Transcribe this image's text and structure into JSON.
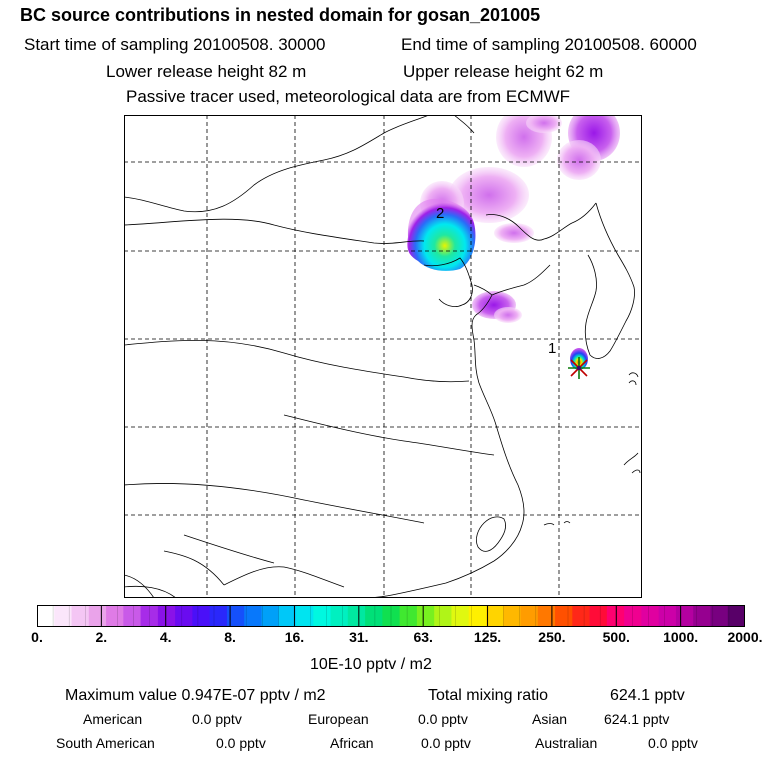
{
  "header": {
    "title": "BC  source contributions in nested domain for gosan_201005",
    "start_label": "Start time of sampling 20100508. 30000",
    "end_label": "End time of sampling 20100508. 60000",
    "lower_label": "Lower release height   82 m",
    "upper_label": "Upper release height   62 m",
    "note": "Passive tracer used, meteorological data are from ECMWF"
  },
  "map": {
    "markers": [
      {
        "label": "1",
        "name": "marker-1"
      },
      {
        "label": "2",
        "name": "marker-2"
      }
    ],
    "receptor_symbol": "star"
  },
  "colorbar": {
    "tick_labels": [
      "0.",
      "2.",
      "4.",
      "8.",
      "16.",
      "31.",
      "63.",
      "125.",
      "250.",
      "500.",
      "1000.",
      "2000."
    ],
    "units": "10E-10 pptv / m2",
    "colors": [
      "#ffffff",
      "#fbe6fb",
      "#f4c6f4",
      "#eaa3ea",
      "#df7be6",
      "#c95ae8",
      "#a72ce8",
      "#8a12e8",
      "#6a0cf0",
      "#4a10f8",
      "#2a28fb",
      "#1550fb",
      "#0878fb",
      "#00a0f8",
      "#00c8f8",
      "#00e4f0",
      "#00f8e0",
      "#00f0c0",
      "#00e8a0",
      "#00e078",
      "#10e050",
      "#40e830",
      "#78f020",
      "#b0f418",
      "#e0f810",
      "#fff000",
      "#ffd400",
      "#ffb800",
      "#ff9c00",
      "#ff7800",
      "#ff5000",
      "#ff2818",
      "#ff0c38",
      "#ff0070",
      "#f00090",
      "#e000a0",
      "#cc00a8",
      "#b400a0",
      "#960090",
      "#780080",
      "#580068"
    ]
  },
  "summary": {
    "max_label": "Maximum value  0.947E-07 pptv / m2",
    "total_label": "Total mixing ratio",
    "total_value": "624.1  pptv",
    "regions": [
      {
        "name": "American",
        "value": "0.0 pptv"
      },
      {
        "name": "European",
        "value": "0.0 pptv"
      },
      {
        "name": "Asian",
        "value": "624.1 pptv"
      },
      {
        "name": "South American",
        "value": "0.0 pptv"
      },
      {
        "name": "African",
        "value": "0.0 pptv"
      },
      {
        "name": "Australian",
        "value": "0.0 pptv"
      }
    ]
  }
}
